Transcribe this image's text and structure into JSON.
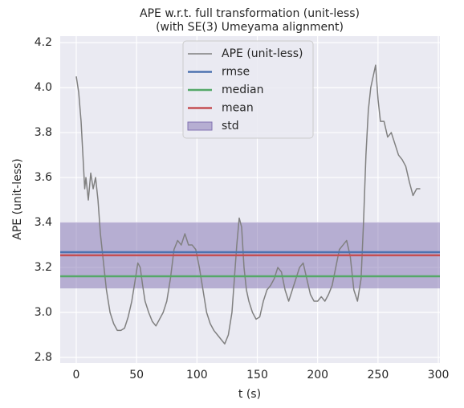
{
  "chart_data": {
    "type": "line",
    "title": [
      "APE w.r.t. full transformation (unit-less)",
      "(with SE(3) Umeyama alignment)"
    ],
    "xlabel": "t (s)",
    "ylabel": "APE (unit-less)",
    "x": [
      0,
      2,
      4,
      6,
      7,
      8,
      10,
      12,
      14,
      16,
      18,
      20,
      22,
      25,
      28,
      31,
      34,
      37,
      40,
      43,
      46,
      49,
      51,
      53,
      55,
      57,
      60,
      63,
      66,
      69,
      72,
      75,
      78,
      81,
      84,
      87,
      90,
      93,
      96,
      99,
      102,
      105,
      108,
      111,
      114,
      117,
      120,
      123,
      126,
      129,
      131,
      133,
      135,
      137,
      139,
      141,
      143,
      146,
      149,
      152,
      155,
      158,
      161,
      164,
      167,
      170,
      173,
      176,
      179,
      182,
      185,
      188,
      191,
      194,
      197,
      200,
      203,
      206,
      209,
      212,
      215,
      218,
      221,
      224,
      227,
      230,
      233,
      236,
      238,
      240,
      242,
      244,
      246,
      248,
      250,
      252,
      255,
      258,
      261,
      264,
      267,
      270,
      273,
      276,
      279,
      282,
      285
    ],
    "series": [
      {
        "name": "APE (unit-less)",
        "color": "#808080",
        "values": [
          4.05,
          3.98,
          3.85,
          3.65,
          3.55,
          3.6,
          3.5,
          3.62,
          3.55,
          3.6,
          3.5,
          3.35,
          3.25,
          3.1,
          3.0,
          2.95,
          2.92,
          2.92,
          2.93,
          2.98,
          3.05,
          3.15,
          3.22,
          3.2,
          3.12,
          3.05,
          3.0,
          2.96,
          2.94,
          2.97,
          3.0,
          3.05,
          3.15,
          3.28,
          3.32,
          3.3,
          3.35,
          3.3,
          3.3,
          3.28,
          3.2,
          3.1,
          3.0,
          2.95,
          2.92,
          2.9,
          2.88,
          2.86,
          2.9,
          3.0,
          3.15,
          3.3,
          3.42,
          3.38,
          3.2,
          3.1,
          3.05,
          3.0,
          2.97,
          2.98,
          3.05,
          3.1,
          3.12,
          3.15,
          3.2,
          3.18,
          3.1,
          3.05,
          3.1,
          3.15,
          3.2,
          3.22,
          3.15,
          3.08,
          3.05,
          3.05,
          3.07,
          3.05,
          3.08,
          3.12,
          3.2,
          3.28,
          3.3,
          3.32,
          3.25,
          3.1,
          3.05,
          3.15,
          3.4,
          3.7,
          3.9,
          4.0,
          4.05,
          4.1,
          3.95,
          3.85,
          3.85,
          3.78,
          3.8,
          3.75,
          3.7,
          3.68,
          3.65,
          3.58,
          3.52,
          3.55,
          3.55
        ]
      }
    ],
    "stats": [
      {
        "name": "rmse",
        "color": "#4c72b0",
        "value": 3.268
      },
      {
        "name": "median",
        "color": "#55a868",
        "value": 3.161
      },
      {
        "name": "mean",
        "color": "#c44e52",
        "value": 3.254
      }
    ],
    "std": {
      "name": "std",
      "color": "#8172b2",
      "value": 0.147
    },
    "xlim": [
      -13.3,
      301.3
    ],
    "ylim": [
      2.775,
      4.229
    ],
    "xticks": [
      0,
      50,
      100,
      150,
      200,
      250,
      300
    ],
    "yticks": [
      {
        "value": 2.8,
        "label": "2.8"
      },
      {
        "value": 3.0,
        "label": "3.0"
      },
      {
        "value": 3.2,
        "label": "3.2"
      },
      {
        "value": 3.4,
        "label": "3.4"
      },
      {
        "value": 3.6,
        "label": "3.6"
      },
      {
        "value": 3.8,
        "label": "3.8"
      },
      {
        "value": 4.0,
        "label": "4.0"
      },
      {
        "value": 4.2,
        "label": "4.2"
      }
    ],
    "grid": true
  }
}
